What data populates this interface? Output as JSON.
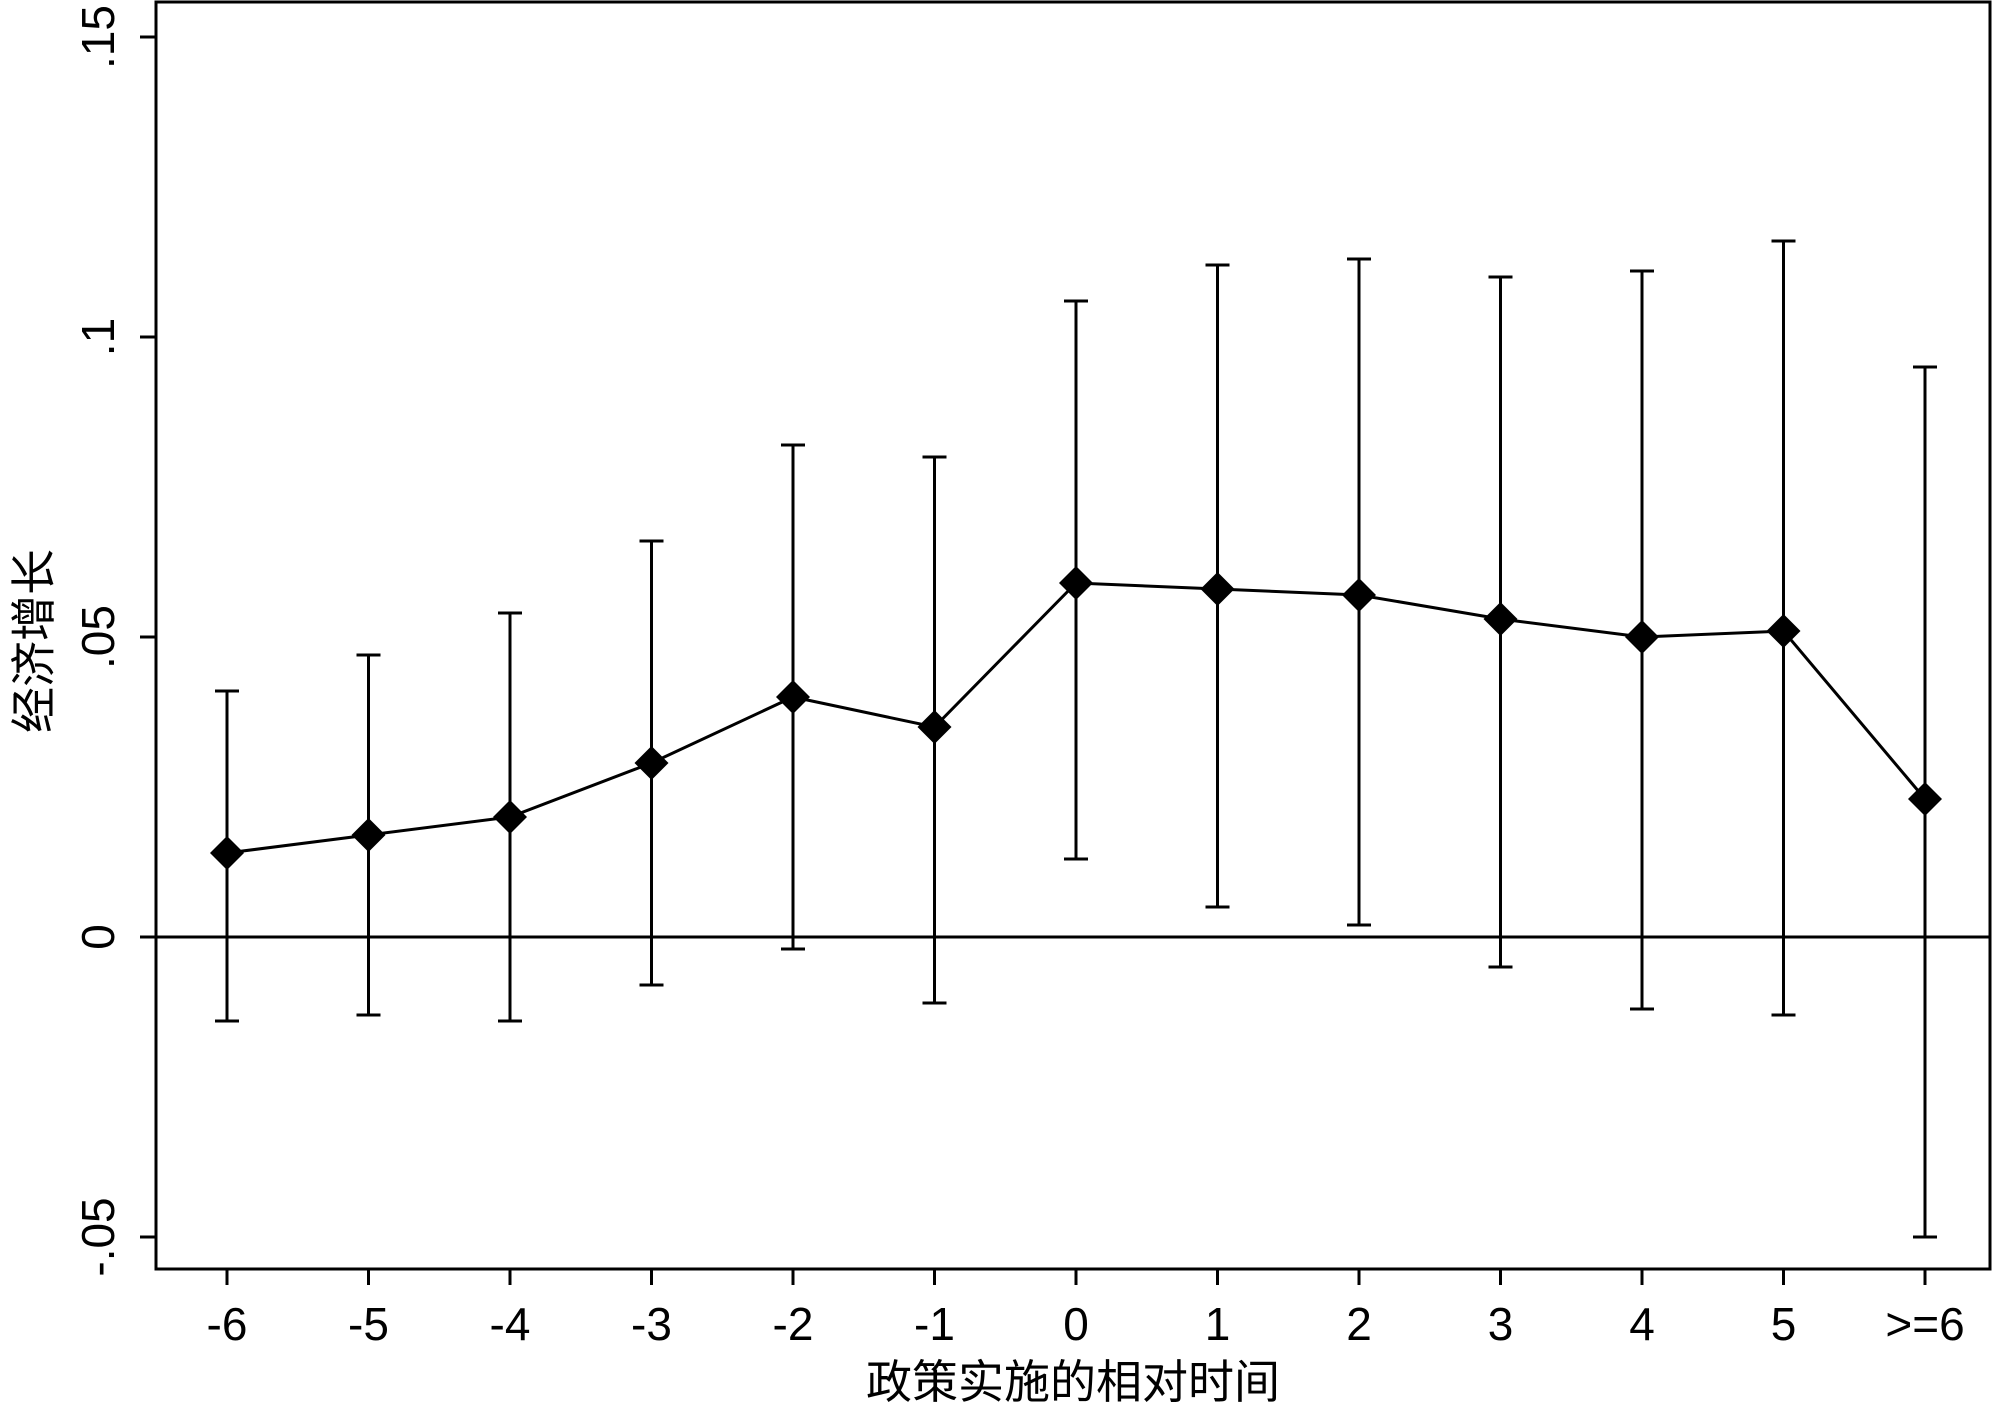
{
  "chart_data": {
    "type": "scatter",
    "title": "",
    "xlabel": "政策实施的相对时间",
    "ylabel": "经济增长",
    "categories": [
      "-6",
      "-5",
      "-4",
      "-3",
      "-2",
      "-1",
      "0",
      "1",
      "2",
      "3",
      "4",
      "5",
      ">=6"
    ],
    "series": [
      {
        "values": [
          0.014,
          0.017,
          0.02,
          0.029,
          0.04,
          0.035,
          0.059,
          0.058,
          0.057,
          0.053,
          0.05,
          0.051,
          0.023
        ],
        "ci_lower": [
          -0.014,
          -0.013,
          -0.014,
          -0.008,
          -0.002,
          -0.011,
          0.013,
          0.005,
          0.002,
          -0.005,
          -0.012,
          -0.013,
          -0.05
        ],
        "ci_upper": [
          0.041,
          0.047,
          0.054,
          0.066,
          0.082,
          0.08,
          0.106,
          0.112,
          0.113,
          0.11,
          0.111,
          0.116,
          0.095
        ],
        "marker": "diamond",
        "color": "#000000"
      }
    ],
    "y_ticks": [
      -0.05,
      0,
      0.05,
      0.1,
      0.15
    ],
    "y_tick_labels": [
      "-.05",
      "0",
      ".05",
      ".1",
      ".15"
    ],
    "ylim": [
      -0.055,
      0.157
    ],
    "reference_line_y": 0,
    "grid": false,
    "legend": "none"
  }
}
